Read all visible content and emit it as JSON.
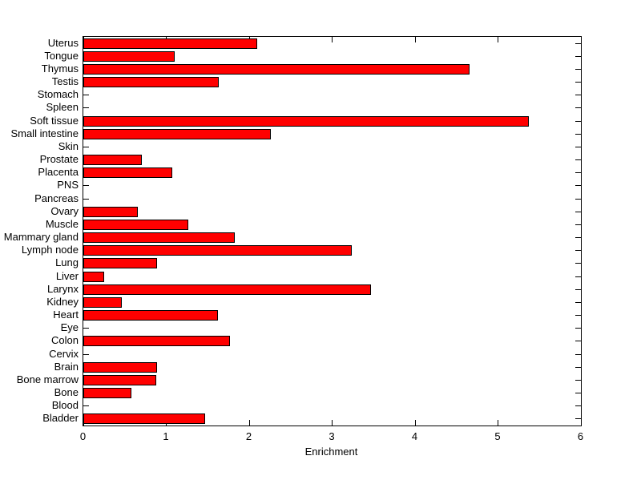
{
  "figure": {
    "background": "#ffffff"
  },
  "chart_data": {
    "type": "bar",
    "orientation": "horizontal",
    "title": "",
    "xlabel": "Enrichment",
    "ylabel": "",
    "xlim": [
      0,
      6
    ],
    "xticks": [
      "0",
      "1",
      "2",
      "3",
      "4",
      "5",
      "6"
    ],
    "grid": false,
    "legend": "none",
    "bar_color": "#ff0000",
    "bar_edge_color": "#000000",
    "axis_color": "#000000",
    "categories": [
      "Uterus",
      "Tongue",
      "Thymus",
      "Testis",
      "Stomach",
      "Spleen",
      "Soft tissue",
      "Small intestine",
      "Skin",
      "Prostate",
      "Placenta",
      "PNS",
      "Pancreas",
      "Ovary",
      "Muscle",
      "Mammary gland",
      "Lymph node",
      "Lung",
      "Liver",
      "Larynx",
      "Kidney",
      "Heart",
      "Eye",
      "Colon",
      "Cervix",
      "Brain",
      "Bone marrow",
      "Bone",
      "Blood",
      "Bladder"
    ],
    "values": [
      2.1,
      1.1,
      4.66,
      1.63,
      0,
      0,
      5.37,
      2.26,
      0,
      0.71,
      1.07,
      0,
      0,
      0.66,
      1.27,
      1.83,
      3.24,
      0.89,
      0.25,
      3.47,
      0.46,
      1.62,
      0,
      1.77,
      0,
      0.89,
      0.88,
      0.58,
      0,
      1.47
    ]
  }
}
